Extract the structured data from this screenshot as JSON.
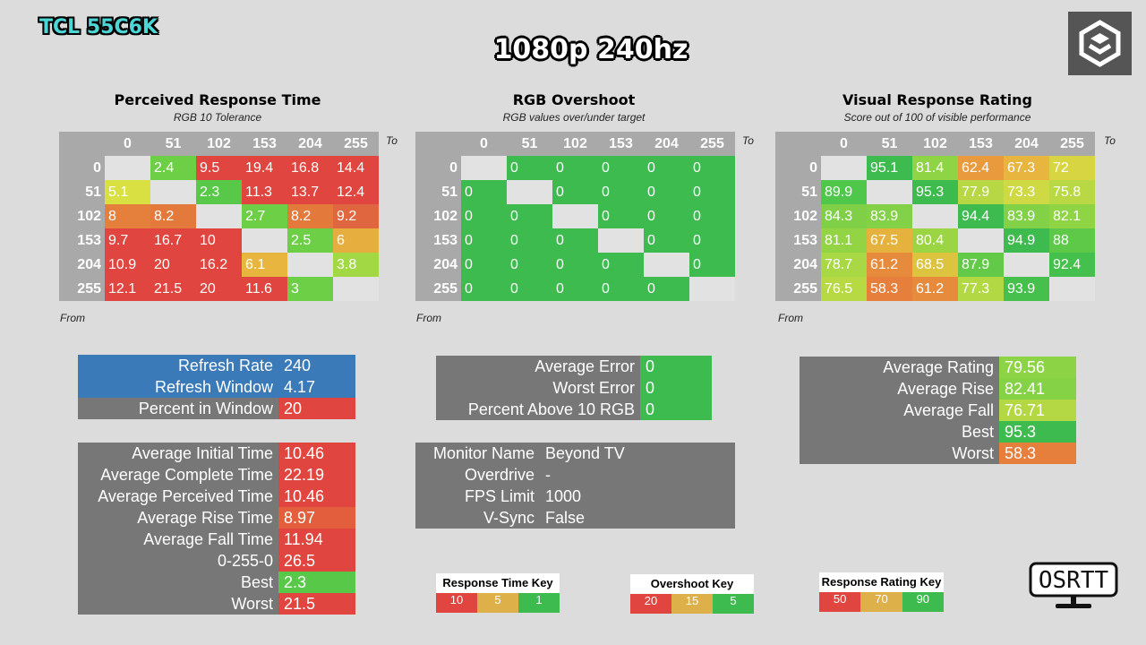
{
  "header": {
    "brand": "TCL 55C6K",
    "title": "1080p 240hz"
  },
  "labels": {
    "to": "To",
    "from": "From"
  },
  "chart_data": [
    {
      "type": "heatmap",
      "title": "Perceived Response Time",
      "subtitle": "RGB 10 Tolerance",
      "columns": [
        "0",
        "51",
        "102",
        "153",
        "204",
        "255"
      ],
      "rows": [
        "0",
        "51",
        "102",
        "153",
        "204",
        "255"
      ],
      "values": [
        [
          null,
          "2.4",
          "9.5",
          "19.4",
          "16.8",
          "14.4"
        ],
        [
          "5.1",
          null,
          "2.3",
          "11.3",
          "13.7",
          "12.4"
        ],
        [
          "8",
          "8.2",
          null,
          "2.7",
          "8.2",
          "9.2"
        ],
        [
          "9.7",
          "16.7",
          "10",
          null,
          "2.5",
          "6"
        ],
        [
          "10.9",
          "20",
          "16.2",
          "6.1",
          null,
          "3.8"
        ],
        [
          "12.1",
          "21.5",
          "20",
          "11.6",
          "3",
          null
        ]
      ],
      "colors": [
        [
          null,
          "#6ccf45",
          "#e0463f",
          "#e0463f",
          "#e0463f",
          "#e0463f"
        ],
        [
          "#d8e042",
          null,
          "#57c848",
          "#e0463f",
          "#e0463f",
          "#e0463f"
        ],
        [
          "#e57f3c",
          "#e37a3c",
          null,
          "#6ccf45",
          "#e37a3c",
          "#e0663f"
        ],
        [
          "#e0463f",
          "#e0463f",
          "#e0463f",
          null,
          "#6ccf45",
          "#e6ae3f"
        ],
        [
          "#e0463f",
          "#e0463f",
          "#e0463f",
          "#e8b53f",
          null,
          "#a3d845"
        ],
        [
          "#e0463f",
          "#e0463f",
          "#e0463f",
          "#e0463f",
          "#6ccf45",
          null
        ]
      ]
    },
    {
      "type": "heatmap",
      "title": "RGB Overshoot",
      "subtitle": "RGB values over/under target",
      "columns": [
        "0",
        "51",
        "102",
        "153",
        "204",
        "255"
      ],
      "rows": [
        "0",
        "51",
        "102",
        "153",
        "204",
        "255"
      ],
      "values": [
        [
          null,
          "0",
          "0",
          "0",
          "0",
          "0"
        ],
        [
          "0",
          null,
          "0",
          "0",
          "0",
          "0"
        ],
        [
          "0",
          "0",
          null,
          "0",
          "0",
          "0"
        ],
        [
          "0",
          "0",
          "0",
          null,
          "0",
          "0"
        ],
        [
          "0",
          "0",
          "0",
          "0",
          null,
          "0"
        ],
        [
          "0",
          "0",
          "0",
          "0",
          "0",
          null
        ]
      ],
      "colors": "#3dbb4e"
    },
    {
      "type": "heatmap",
      "title": "Visual Response Rating",
      "subtitle": "Score out of 100 of visible performance",
      "columns": [
        "0",
        "51",
        "102",
        "153",
        "204",
        "255"
      ],
      "rows": [
        "0",
        "51",
        "102",
        "153",
        "204",
        "255"
      ],
      "values": [
        [
          null,
          "95.1",
          "81.4",
          "62.4",
          "67.3",
          "72"
        ],
        [
          "89.9",
          null,
          "95.3",
          "77.9",
          "73.3",
          "75.8"
        ],
        [
          "84.3",
          "83.9",
          null,
          "94.4",
          "83.9",
          "82.1"
        ],
        [
          "81.1",
          "67.5",
          "80.4",
          null,
          "94.9",
          "88"
        ],
        [
          "78.7",
          "61.2",
          "68.5",
          "87.9",
          null,
          "92.4"
        ],
        [
          "76.5",
          "58.3",
          "61.2",
          "77.3",
          "93.9",
          null
        ]
      ],
      "colors": [
        [
          null,
          "#3dbb4e",
          "#8fd445",
          "#e89a3c",
          "#e8b53f",
          "#d8d542"
        ],
        [
          "#4ec74a",
          null,
          "#3dbb4e",
          "#b7d844",
          "#cfd944",
          "#b9d944"
        ],
        [
          "#7fd046",
          "#82d146",
          "#3dbb4e",
          "#3dbb4e",
          "#82d146",
          "#8fd445"
        ],
        [
          "#93d445",
          "#e6b23e",
          "#9bd544",
          null,
          "#3dbb4e",
          "#5ec948"
        ],
        [
          "#a8d844",
          "#e68a3c",
          "#ddc43f",
          "#62ca48",
          null,
          "#45c04c"
        ],
        [
          "#b6d944",
          "#e67e3c",
          "#e68a3c",
          "#b2d844",
          "#45c04c",
          null
        ]
      ]
    }
  ],
  "stats": {
    "refresh": [
      {
        "k": "Refresh Rate",
        "v": "240",
        "kc": "#3a7ab8",
        "vc": "#3a7ab8"
      },
      {
        "k": "Refresh Window",
        "v": "4.17",
        "kc": "#3a7ab8",
        "vc": "#3a7ab8"
      },
      {
        "k": "Percent in Window",
        "v": "20",
        "kc": "#777777",
        "vc": "#e0463f"
      }
    ],
    "times": [
      {
        "k": "Average Initial Time",
        "v": "10.46",
        "vc": "#e0463f"
      },
      {
        "k": "Average Complete Time",
        "v": "22.19",
        "vc": "#e0463f"
      },
      {
        "k": "Average Perceived Time",
        "v": "10.46",
        "vc": "#e0463f"
      },
      {
        "k": "Average Rise Time",
        "v": "8.97",
        "vc": "#e35e3d"
      },
      {
        "k": "Average Fall Time",
        "v": "11.94",
        "vc": "#e0463f"
      },
      {
        "k": "0-255-0",
        "v": "26.5",
        "vc": "#e0463f"
      },
      {
        "k": "Best",
        "v": "2.3",
        "vc": "#57c848"
      },
      {
        "k": "Worst",
        "v": "21.5",
        "vc": "#e0463f"
      }
    ],
    "errors": [
      {
        "k": "Average Error",
        "v": "0",
        "vc": "#3dbb4e"
      },
      {
        "k": "Worst Error",
        "v": "0",
        "vc": "#3dbb4e"
      },
      {
        "k": "Percent Above 10 RGB",
        "v": "0",
        "vc": "#3dbb4e"
      }
    ],
    "monitor": [
      {
        "k": "Monitor Name",
        "v": "Beyond TV"
      },
      {
        "k": "Overdrive",
        "v": "-"
      },
      {
        "k": "FPS Limit",
        "v": "1000"
      },
      {
        "k": "V-Sync",
        "v": "False"
      }
    ],
    "ratings": [
      {
        "k": "Average Rating",
        "v": "79.56",
        "vc": "#8cd346"
      },
      {
        "k": "Average Rise",
        "v": "82.41",
        "vc": "#86d246"
      },
      {
        "k": "Average Fall",
        "v": "76.71",
        "vc": "#b4d844"
      },
      {
        "k": "Best",
        "v": "95.3",
        "vc": "#3dbb4e"
      },
      {
        "k": "Worst",
        "v": "58.3",
        "vc": "#e67e3c"
      }
    ]
  },
  "keys": [
    {
      "title": "Response Time Key",
      "items": [
        {
          "t": "10",
          "c": "#e0463f"
        },
        {
          "t": "5",
          "c": "#ddb04a"
        },
        {
          "t": "1",
          "c": "#3dbb4e"
        }
      ]
    },
    {
      "title": "Overshoot Key",
      "items": [
        {
          "t": "20",
          "c": "#e0463f"
        },
        {
          "t": "15",
          "c": "#ddb04a"
        },
        {
          "t": "5",
          "c": "#3dbb4e"
        }
      ]
    },
    {
      "title": "Response Rating Key",
      "items": [
        {
          "t": "50",
          "c": "#e0463f"
        },
        {
          "t": "70",
          "c": "#ddb04a"
        },
        {
          "t": "90",
          "c": "#3dbb4e"
        }
      ]
    }
  ],
  "osrtt_logo": "OSRTT"
}
